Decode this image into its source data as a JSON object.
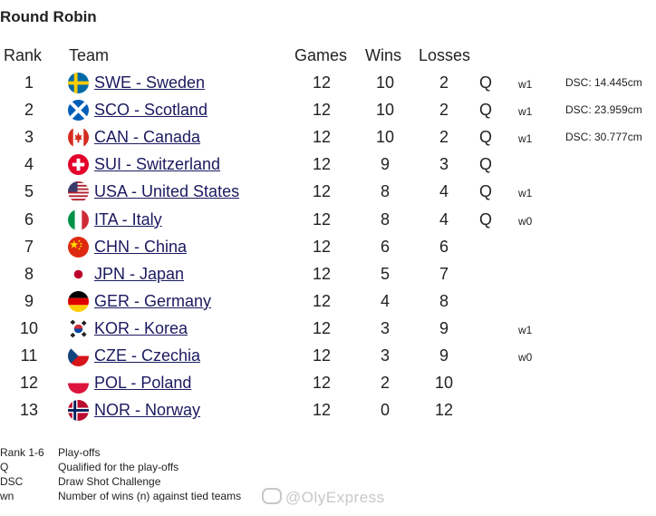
{
  "title": "Round Robin",
  "headers": {
    "rank": "Rank",
    "team": "Team",
    "games": "Games",
    "wins": "Wins",
    "losses": "Losses"
  },
  "rows": [
    {
      "rank": "1",
      "team": "SWE - Sweden",
      "games": "12",
      "wins": "10",
      "losses": "2",
      "q": "Q",
      "tb": "w1",
      "dsc": "DSC:  14.445cm",
      "flag": "sweden-flag-icon"
    },
    {
      "rank": "2",
      "team": "SCO - Scotland",
      "games": "12",
      "wins": "10",
      "losses": "2",
      "q": "Q",
      "tb": "w1",
      "dsc": "DSC:  23.959cm",
      "flag": "scotland-flag-icon"
    },
    {
      "rank": "3",
      "team": "CAN - Canada",
      "games": "12",
      "wins": "10",
      "losses": "2",
      "q": "Q",
      "tb": "w1",
      "dsc": "DSC:  30.777cm",
      "flag": "canada-flag-icon"
    },
    {
      "rank": "4",
      "team": "SUI - Switzerland",
      "games": "12",
      "wins": "9",
      "losses": "3",
      "q": "Q",
      "tb": "",
      "dsc": "",
      "flag": "switzerland-flag-icon"
    },
    {
      "rank": "5",
      "team": "USA - United States",
      "games": "12",
      "wins": "8",
      "losses": "4",
      "q": "Q",
      "tb": "w1",
      "dsc": "",
      "flag": "usa-flag-icon"
    },
    {
      "rank": "6",
      "team": "ITA - Italy",
      "games": "12",
      "wins": "8",
      "losses": "4",
      "q": "Q",
      "tb": "w0",
      "dsc": "",
      "flag": "italy-flag-icon"
    },
    {
      "rank": "7",
      "team": "CHN - China",
      "games": "12",
      "wins": "6",
      "losses": "6",
      "q": "",
      "tb": "",
      "dsc": "",
      "flag": "china-flag-icon"
    },
    {
      "rank": "8",
      "team": "JPN - Japan",
      "games": "12",
      "wins": "5",
      "losses": "7",
      "q": "",
      "tb": "",
      "dsc": "",
      "flag": "japan-flag-icon"
    },
    {
      "rank": "9",
      "team": "GER - Germany",
      "games": "12",
      "wins": "4",
      "losses": "8",
      "q": "",
      "tb": "",
      "dsc": "",
      "flag": "germany-flag-icon"
    },
    {
      "rank": "10",
      "team": "KOR - Korea",
      "games": "12",
      "wins": "3",
      "losses": "9",
      "q": "",
      "tb": "w1",
      "dsc": "",
      "flag": "korea-flag-icon"
    },
    {
      "rank": "11",
      "team": "CZE - Czechia",
      "games": "12",
      "wins": "3",
      "losses": "9",
      "q": "",
      "tb": "w0",
      "dsc": "",
      "flag": "czechia-flag-icon"
    },
    {
      "rank": "12",
      "team": "POL - Poland",
      "games": "12",
      "wins": "2",
      "losses": "10",
      "q": "",
      "tb": "",
      "dsc": "",
      "flag": "poland-flag-icon"
    },
    {
      "rank": "13",
      "team": "NOR - Norway",
      "games": "12",
      "wins": "0",
      "losses": "12",
      "q": "",
      "tb": "",
      "dsc": "",
      "flag": "norway-flag-icon"
    }
  ],
  "legend": [
    {
      "key": "Rank 1-6",
      "value": "Play-offs"
    },
    {
      "key": "Q",
      "value": "Qualified for the play-offs"
    },
    {
      "key": "DSC",
      "value": "Draw Shot Challenge"
    },
    {
      "key": "wn",
      "value": "Number of wins (n) against tied teams"
    }
  ],
  "watermark": "@OlyExpress",
  "colors": {
    "link": "#1a1a60",
    "text": "#222222",
    "watermark": "#c8c8c8"
  }
}
